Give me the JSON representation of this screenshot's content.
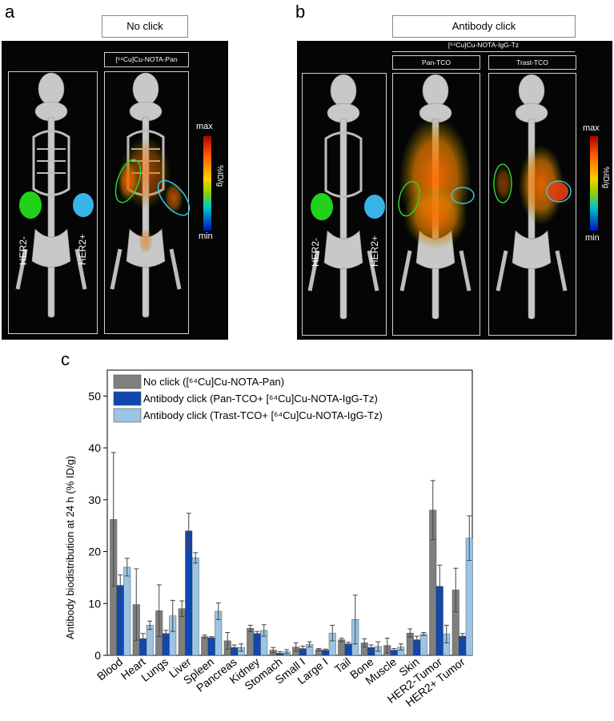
{
  "panel_a": {
    "letter": "a",
    "header": "No click",
    "probe_label": "[⁶⁴Cu]Cu-NOTA-Pan",
    "her2_neg": "HER2-",
    "her2_pos": "HER2+",
    "colorbar_max": "max",
    "colorbar_min": "min",
    "colorbar_unit": "%ID/g"
  },
  "panel_b": {
    "letter": "b",
    "header": "Antibody click",
    "probe_label": "[⁶⁴Cu]Cu-NOTA-IgG-Tz",
    "sub1": "Pan-TCO",
    "sub2": "Trast-TCO",
    "her2_neg": "HER2-",
    "her2_pos": "HER2+",
    "colorbar_max": "max",
    "colorbar_min": "min",
    "colorbar_unit": "%ID/g"
  },
  "panel_c": {
    "letter": "c"
  },
  "colors": {
    "series1": "#7f7f7f",
    "series2": "#1048b0",
    "series3": "#9cc4e4",
    "her2_neg_tumor": "#22d11a",
    "her2_pos_tumor": "#38b4e8"
  },
  "chart_data": {
    "type": "bar",
    "title": "",
    "xlabel": "",
    "ylabel": "Antibody biodistribution at 24 h (% ID/g)",
    "ylim": [
      0,
      55
    ],
    "yticks": [
      0,
      10,
      20,
      30,
      40,
      50
    ],
    "categories": [
      "Blood",
      "Heart",
      "Lungs",
      "Liver",
      "Spleen",
      "Pancreas",
      "Kidney",
      "Stomach",
      "Small I",
      "Large I",
      "Tail",
      "Bone",
      "Muscle",
      "Skin",
      "HER2-Tumor",
      "HER2+ Tumor"
    ],
    "series": [
      {
        "name": "No click ([⁶⁴Cu]Cu-NOTA-Pan)",
        "values": [
          26.2,
          9.8,
          8.6,
          9.0,
          3.6,
          2.8,
          5.2,
          1.0,
          1.6,
          1.1,
          3.0,
          2.4,
          1.9,
          4.3,
          28.0,
          12.6
        ],
        "errors": [
          12.9,
          6.9,
          5.0,
          1.5,
          0.3,
          1.6,
          0.6,
          0.5,
          0.8,
          0.2,
          0.3,
          0.8,
          1.4,
          0.8,
          5.7,
          4.2
        ]
      },
      {
        "name": "Antibody click (Pan-TCO+ [⁶⁴Cu]Cu-NOTA-IgG-Tz)",
        "values": [
          13.5,
          3.2,
          4.2,
          24.0,
          3.4,
          1.5,
          4.2,
          0.4,
          1.3,
          1.0,
          2.2,
          1.5,
          1.0,
          3.0,
          13.3,
          3.7
        ],
        "errors": [
          2.0,
          1.0,
          0.6,
          3.4,
          0.2,
          0.5,
          0.4,
          0.3,
          0.5,
          0.2,
          0.3,
          0.5,
          0.3,
          0.7,
          4.1,
          0.5
        ]
      },
      {
        "name": "Antibody click (Trast-TCO+ [⁶⁴Cu]Cu-NOTA-IgG-Tz)",
        "values": [
          17.0,
          5.8,
          7.6,
          18.8,
          8.5,
          1.5,
          4.8,
          0.7,
          2.1,
          4.3,
          6.9,
          1.7,
          1.6,
          4.1,
          4.1,
          22.6
        ],
        "errors": [
          1.7,
          0.8,
          3.0,
          1.0,
          1.6,
          0.7,
          1.1,
          0.4,
          0.5,
          1.5,
          4.7,
          0.9,
          0.6,
          0.3,
          1.7,
          4.3
        ]
      }
    ],
    "legend": "top-left"
  }
}
